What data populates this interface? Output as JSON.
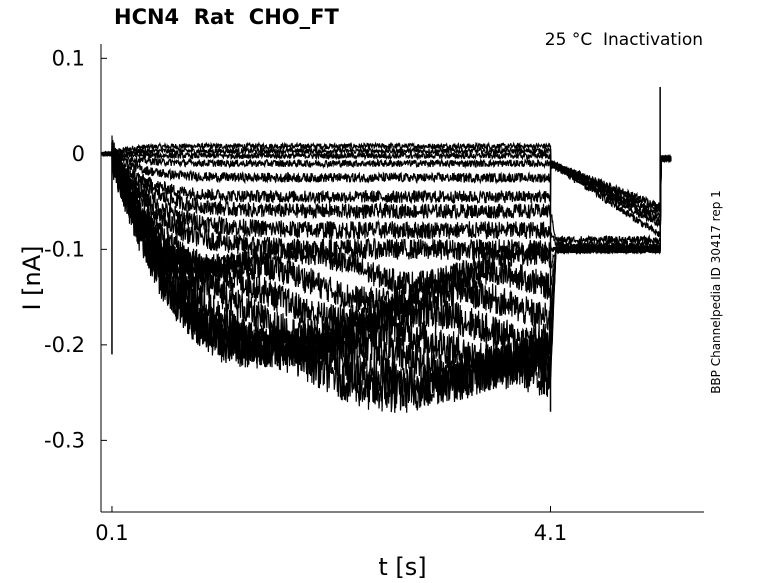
{
  "chart_data": {
    "type": "line",
    "title": "HCN4  Rat  CHO_FT",
    "annotation": "25 °C  Inactivation",
    "side_label": "BBP Channelpedia ID 30417 rep 1",
    "xlabel": "t [s]",
    "ylabel": "I [nA]",
    "xlim": [
      0.0,
      5.5
    ],
    "ylim": [
      -0.375,
      0.115
    ],
    "xticks": [
      0.1,
      4.1
    ],
    "xtick_labels": [
      "0.1",
      "4.1"
    ],
    "yticks": [
      0.1,
      0,
      -0.1,
      -0.2,
      -0.3
    ],
    "ytick_labels": [
      "0.1",
      "0",
      "-0.1",
      "-0.2",
      "-0.3"
    ],
    "grid": false,
    "legend": "none",
    "line_color": "#000000",
    "step_on": 0.1,
    "step_off": 4.1,
    "trace_end": 5.1,
    "series": [
      {
        "steady": 0.008,
        "tail": -0.055
      },
      {
        "steady": 0.003,
        "tail": -0.06
      },
      {
        "steady": -0.002,
        "tail": -0.065
      },
      {
        "steady": -0.01,
        "tail": -0.07
      },
      {
        "steady": -0.025,
        "tail": -0.075
      },
      {
        "steady": -0.045,
        "tail": -0.085
      },
      {
        "steady": -0.06,
        "tail": -0.09
      },
      {
        "steady": -0.08,
        "tail": -0.095
      },
      {
        "steady": -0.1,
        "tail": -0.098
      },
      {
        "steady": -0.12,
        "tail": -0.1
      },
      {
        "steady": -0.14,
        "tail": -0.1
      },
      {
        "steady": -0.16,
        "tail": -0.1
      },
      {
        "steady": -0.18,
        "tail": -0.1
      },
      {
        "steady": -0.2,
        "tail": -0.1
      },
      {
        "steady": -0.215,
        "tail": -0.1
      },
      {
        "steady": -0.23,
        "tail": -0.1
      },
      {
        "steady": -0.24,
        "tail": -0.1
      }
    ]
  }
}
